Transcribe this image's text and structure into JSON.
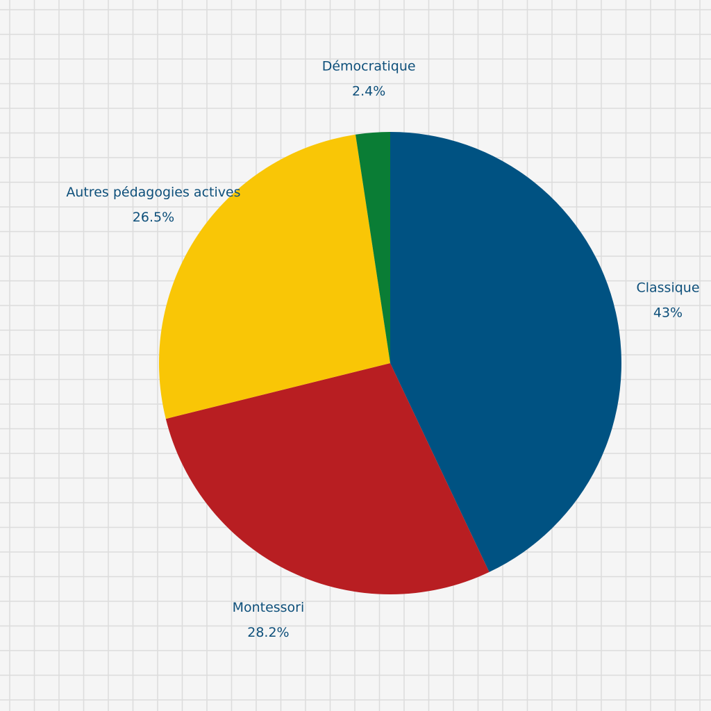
{
  "chart_data": {
    "type": "pie",
    "categories": [
      "Classique",
      "Montessori",
      "Autres pédagogies actives",
      "Démocratique"
    ],
    "values": [
      43,
      28.2,
      26.5,
      2.4
    ],
    "value_labels": [
      "43%",
      "28.2%",
      "26.5%",
      "2.4%"
    ],
    "colors": [
      "#005282",
      "#b81e22",
      "#f9c606",
      "#0a7d35"
    ]
  }
}
